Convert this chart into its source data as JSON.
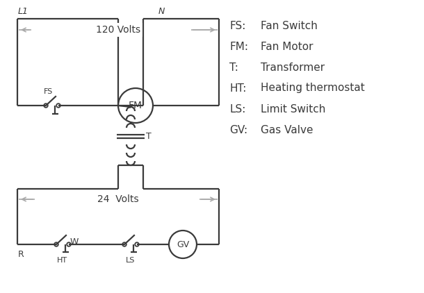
{
  "bg_color": "#ffffff",
  "line_color": "#3a3a3a",
  "gray_arrow_color": "#aaaaaa",
  "legend": {
    "FS": "Fan Switch",
    "FM": "Fan Motor",
    "T": "Transformer",
    "HT": "Heating thermostat",
    "LS": "Limit Switch",
    "GV": "Gas Valve"
  },
  "L1_label": "L1",
  "N_label": "N",
  "volts120_label": "120 Volts",
  "volts24_label": "24  Volts",
  "T_label": "T",
  "R_label": "R",
  "W_label": "W",
  "HT_label": "HT",
  "LS_label": "LS",
  "FS_label": "FS",
  "FM_label": "FM",
  "GV_label": "GV"
}
